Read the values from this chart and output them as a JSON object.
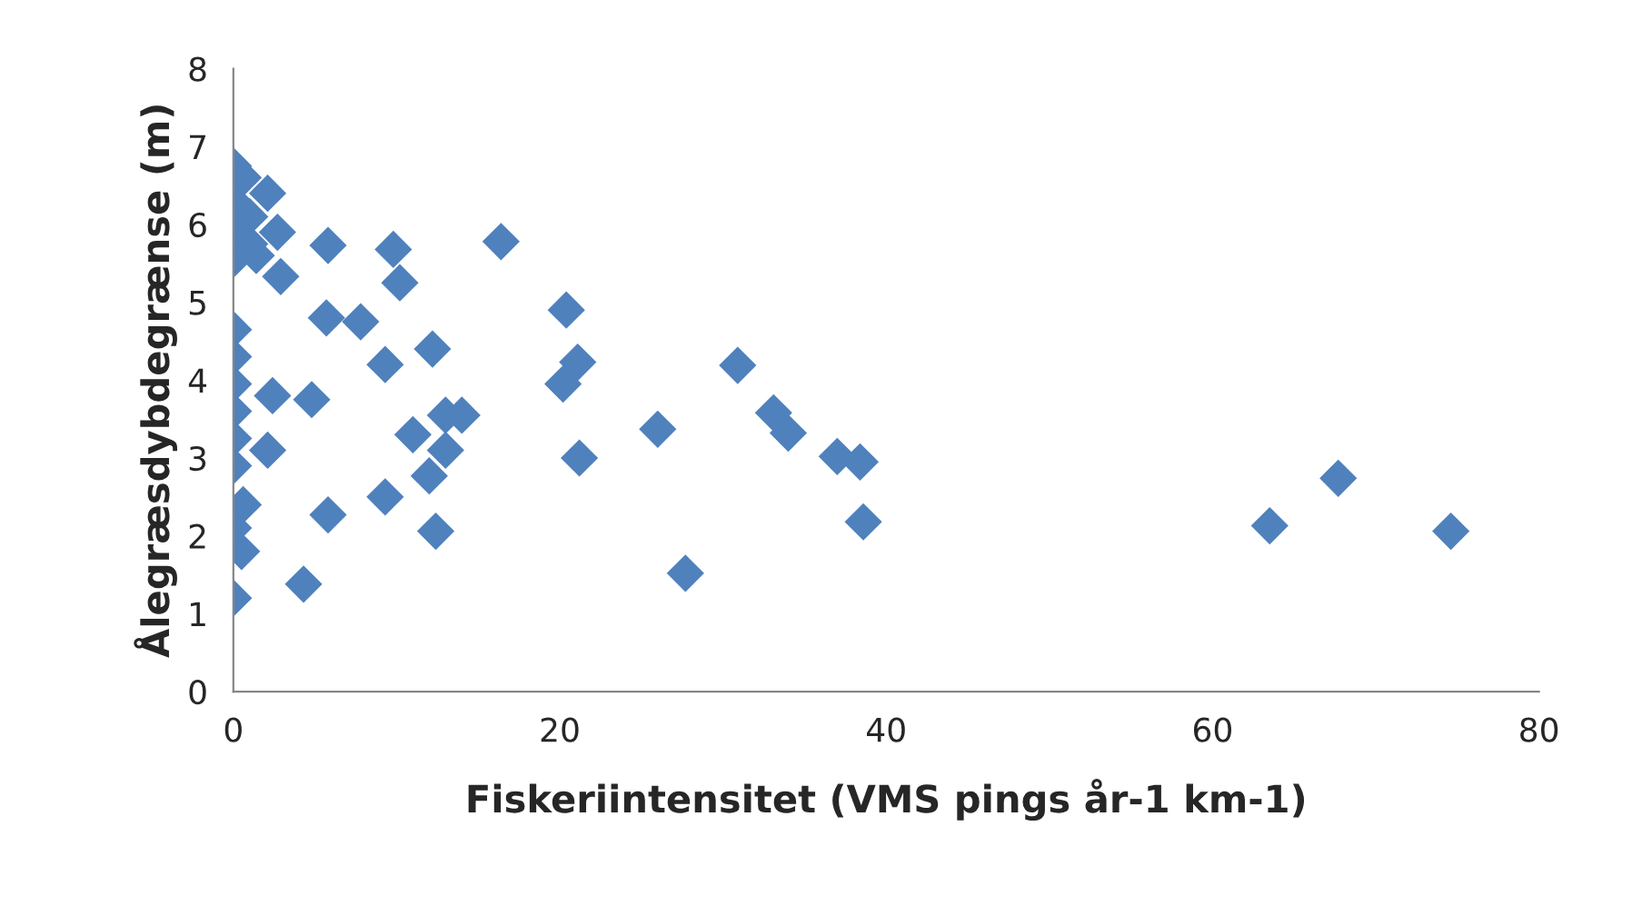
{
  "chart_data": {
    "type": "scatter",
    "xlabel": "Fiskeriintensitet (VMS pings år-1 km-1)",
    "ylabel": "Ålegræsdybdegrænse (m)",
    "series": [
      {
        "color": "#4f81bd",
        "x": [
          0,
          0,
          0,
          0,
          0,
          0,
          0,
          0,
          0,
          0,
          0,
          0,
          0.6,
          1,
          1,
          1.4,
          0.6,
          0.5,
          2.1,
          2.7,
          2.9,
          2.1,
          5.8,
          9.8,
          10.2,
          16.4,
          5.7,
          7.8,
          9.3,
          12.2,
          2.4,
          4.8,
          13,
          14,
          11,
          13,
          12,
          5.8,
          9.3,
          12.4,
          4.3,
          20.4,
          21.1,
          20.2,
          21.2,
          26,
          27.7,
          30.9,
          33.1,
          34,
          37,
          38.4,
          38.6,
          63.5,
          67.7,
          74.6
        ],
        "values": [
          6.75,
          6.3,
          5.9,
          5.55,
          4.65,
          4.3,
          3.95,
          3.6,
          3.25,
          2.9,
          2.1,
          1.2,
          6.6,
          6.1,
          5.75,
          5.6,
          2.4,
          1.8,
          6.4,
          5.9,
          5.33,
          3.1,
          5.73,
          5.68,
          5.25,
          5.78,
          4.8,
          4.75,
          4.2,
          4.4,
          3.8,
          3.75,
          3.55,
          3.55,
          3.3,
          3.1,
          2.77,
          2.27,
          2.5,
          2.06,
          1.38,
          4.9,
          4.23,
          3.95,
          3.0,
          3.37,
          1.52,
          4.19,
          3.58,
          3.32,
          3.02,
          2.95,
          2.18,
          2.13,
          2.74,
          2.06
        ]
      }
    ],
    "xlim": [
      0,
      80
    ],
    "xticks": [
      0,
      20,
      40,
      60,
      80
    ],
    "ylim": [
      0,
      8
    ],
    "yticks": [
      0,
      1,
      2,
      3,
      4,
      5,
      6,
      7,
      8
    ],
    "marker": "diamond",
    "grid": false,
    "legend": false
  }
}
